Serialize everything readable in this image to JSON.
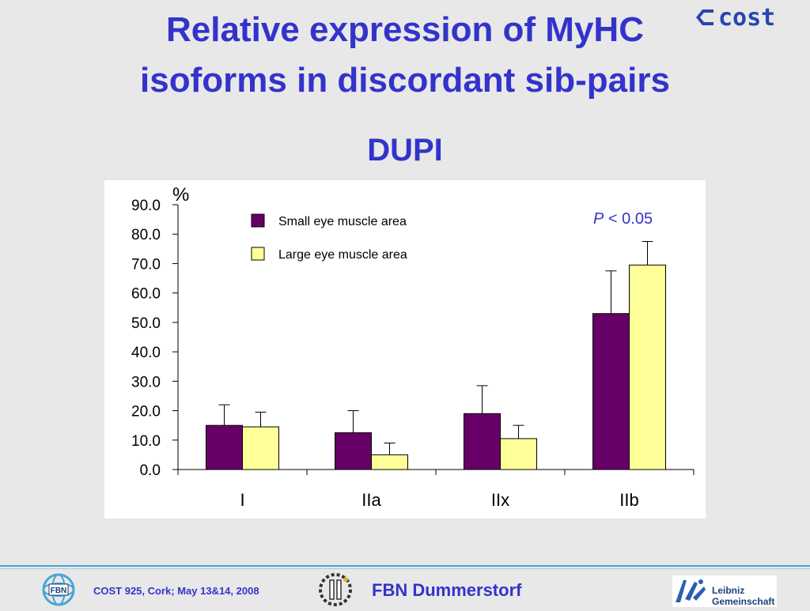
{
  "title": {
    "line1": "Relative expression of MyHC",
    "line2": "isoforms in discordant sib-pairs",
    "line3": "DUPI"
  },
  "colors": {
    "title": "#3333cc",
    "series_small": "#660066",
    "series_large": "#ffff99",
    "background": "#e8e8e8"
  },
  "chart_data": {
    "type": "bar",
    "unit_label": "%",
    "categories": [
      "I",
      "IIa",
      "IIx",
      "IIb"
    ],
    "series": [
      {
        "name": "Small eye muscle area",
        "values": [
          15.0,
          12.5,
          19.0,
          53.0
        ],
        "errors": [
          7.0,
          7.5,
          9.5,
          14.5
        ],
        "color": "#660066"
      },
      {
        "name": "Large eye muscle area",
        "values": [
          14.5,
          5.0,
          10.5,
          69.5
        ],
        "errors": [
          5.0,
          4.0,
          4.5,
          8.0
        ],
        "color": "#ffff99"
      }
    ],
    "yticks": [
      "0.0",
      "10.0",
      "20.0",
      "30.0",
      "40.0",
      "50.0",
      "60.0",
      "70.0",
      "80.0",
      "90.0"
    ],
    "ylim": [
      0,
      90
    ],
    "annotation": {
      "p_symbol": "P",
      "p_rest": " < 0.05"
    },
    "legend_position": "top-center",
    "grid": false
  },
  "footer": {
    "left_text": "COST 925, Cork; May 13&14, 2008",
    "center_text": "FBN Dummerstorf",
    "fbn_logo_text": "FBN",
    "leibniz_line1": "Leibniz",
    "leibniz_line2": "Gemeinschaft",
    "cost_logo_text": "cost"
  }
}
